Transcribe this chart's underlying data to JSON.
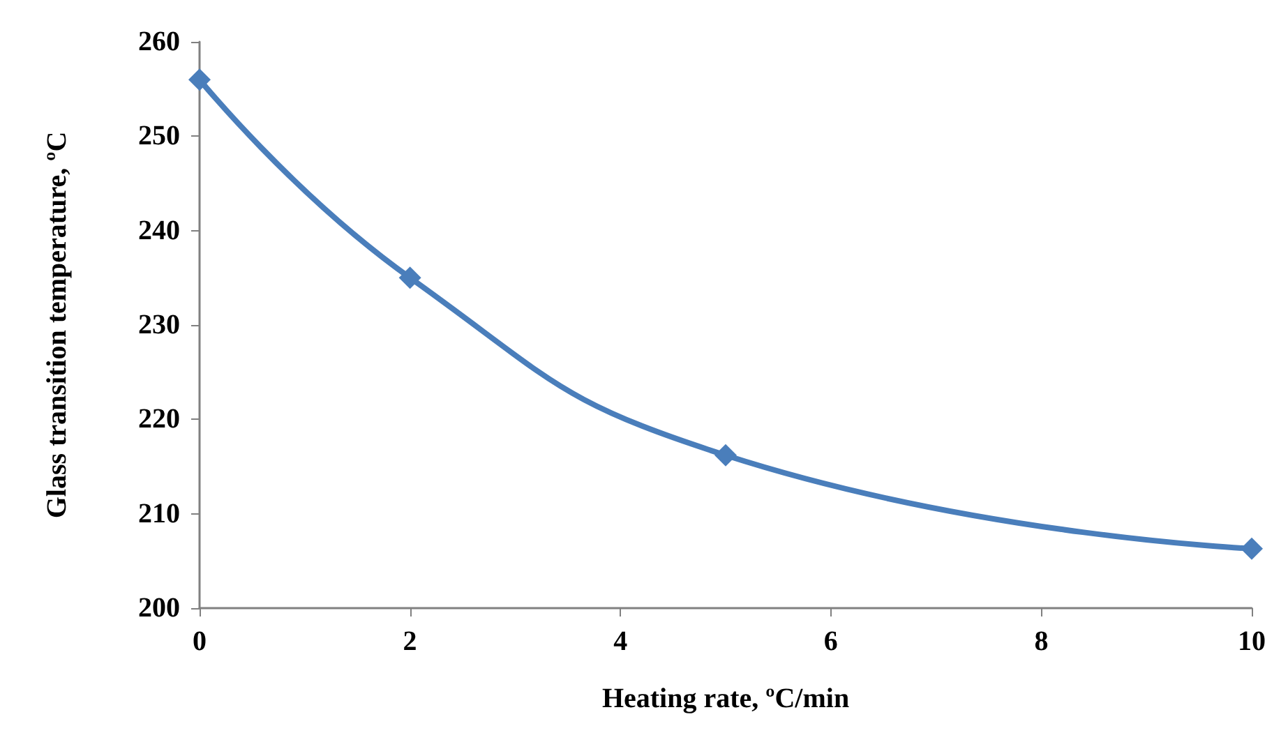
{
  "chart_data": {
    "type": "line",
    "xlabel": "Heating rate, ºC/min",
    "ylabel": "Glass transition temperature, ºC",
    "x": [
      0,
      2,
      5,
      10
    ],
    "series": [
      {
        "color": "#4a7ebb",
        "values": [
          256,
          235,
          216.2,
          206.3
        ]
      }
    ],
    "xlim": [
      0,
      10
    ],
    "xticks": [
      0,
      2,
      4,
      6,
      8,
      10
    ],
    "ylim": [
      200,
      260
    ],
    "yticks": [
      200,
      210,
      220,
      230,
      240,
      250,
      260
    ],
    "grid": false,
    "marker": "diamond",
    "line_style": "solid"
  }
}
